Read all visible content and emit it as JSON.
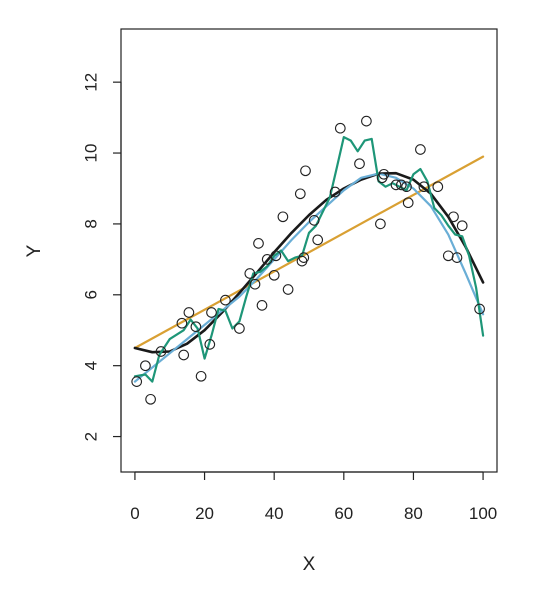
{
  "chart_data": {
    "type": "scatter",
    "title": "",
    "xlabel": "X",
    "ylabel": "Y",
    "xlim": [
      -4,
      104
    ],
    "ylim": [
      1,
      13.5
    ],
    "xticks": [
      0,
      20,
      40,
      60,
      80,
      100
    ],
    "yticks": [
      2,
      4,
      6,
      8,
      10,
      12
    ],
    "xtick_labels": [
      "0",
      "20",
      "40",
      "60",
      "80",
      "100"
    ],
    "ytick_labels": [
      "2",
      "4",
      "6",
      "8",
      "10",
      "12"
    ],
    "grid": false,
    "legend": "none",
    "points": [
      {
        "x": 0.5,
        "y": 3.55
      },
      {
        "x": 3,
        "y": 4.0
      },
      {
        "x": 4.5,
        "y": 3.05
      },
      {
        "x": 7.5,
        "y": 4.4
      },
      {
        "x": 13.5,
        "y": 5.2
      },
      {
        "x": 14,
        "y": 4.3
      },
      {
        "x": 15.5,
        "y": 5.5
      },
      {
        "x": 17.5,
        "y": 5.1
      },
      {
        "x": 19,
        "y": 3.7
      },
      {
        "x": 21.5,
        "y": 4.6
      },
      {
        "x": 22,
        "y": 5.5
      },
      {
        "x": 26,
        "y": 5.85
      },
      {
        "x": 30,
        "y": 5.05
      },
      {
        "x": 33,
        "y": 6.6
      },
      {
        "x": 34.5,
        "y": 6.3
      },
      {
        "x": 35.5,
        "y": 7.45
      },
      {
        "x": 36.5,
        "y": 5.7
      },
      {
        "x": 38,
        "y": 7.0
      },
      {
        "x": 40,
        "y": 6.55
      },
      {
        "x": 40.5,
        "y": 7.1
      },
      {
        "x": 42.5,
        "y": 8.2
      },
      {
        "x": 44,
        "y": 6.15
      },
      {
        "x": 47.5,
        "y": 8.85
      },
      {
        "x": 48,
        "y": 6.95
      },
      {
        "x": 48.5,
        "y": 7.05
      },
      {
        "x": 49,
        "y": 9.5
      },
      {
        "x": 51.5,
        "y": 8.1
      },
      {
        "x": 52.5,
        "y": 7.55
      },
      {
        "x": 57.5,
        "y": 8.9
      },
      {
        "x": 59,
        "y": 10.7
      },
      {
        "x": 64.5,
        "y": 9.7
      },
      {
        "x": 66.5,
        "y": 10.9
      },
      {
        "x": 70.5,
        "y": 8.0
      },
      {
        "x": 71,
        "y": 9.3
      },
      {
        "x": 71.5,
        "y": 9.4
      },
      {
        "x": 75,
        "y": 9.1
      },
      {
        "x": 76.5,
        "y": 9.1
      },
      {
        "x": 78,
        "y": 9.05
      },
      {
        "x": 78.5,
        "y": 8.6
      },
      {
        "x": 82,
        "y": 10.1
      },
      {
        "x": 83,
        "y": 9.05
      },
      {
        "x": 87,
        "y": 9.05
      },
      {
        "x": 90,
        "y": 7.1
      },
      {
        "x": 91.5,
        "y": 8.2
      },
      {
        "x": 92.5,
        "y": 7.05
      },
      {
        "x": 94,
        "y": 7.95
      },
      {
        "x": 99,
        "y": 5.6
      }
    ],
    "series": [
      {
        "kind": "linear-fit",
        "color": "#d9a033",
        "x": [
          0,
          100
        ],
        "y": [
          4.5,
          9.9
        ]
      },
      {
        "kind": "polynomial-fit",
        "color": "#1a1a1a",
        "x": [
          0,
          5,
          10,
          15,
          20,
          25,
          30,
          35,
          40,
          45,
          50,
          55,
          60,
          65,
          70,
          75,
          80,
          85,
          90,
          95,
          100
        ],
        "y": [
          4.5,
          4.38,
          4.4,
          4.62,
          5.0,
          5.5,
          6.05,
          6.62,
          7.2,
          7.75,
          8.25,
          8.68,
          9.0,
          9.25,
          9.42,
          9.43,
          9.25,
          8.85,
          8.2,
          7.35,
          6.35
        ]
      },
      {
        "kind": "smooth-fit",
        "color": "#6aaed6",
        "x": [
          0,
          5,
          10,
          15,
          20,
          25,
          30,
          35,
          40,
          45,
          50,
          55,
          60,
          65,
          70,
          75,
          80,
          85,
          90,
          95,
          100
        ],
        "y": [
          3.55,
          3.95,
          4.35,
          4.75,
          5.15,
          5.55,
          5.95,
          6.45,
          7.0,
          7.55,
          8.05,
          8.5,
          8.95,
          9.3,
          9.42,
          9.3,
          9.0,
          8.5,
          7.7,
          6.6,
          5.45
        ]
      },
      {
        "kind": "flexible-fit",
        "color": "#1e9678",
        "x": [
          0,
          3,
          5,
          7,
          10,
          14,
          16,
          18,
          20,
          22,
          24,
          26,
          28,
          30,
          32,
          34,
          36,
          38,
          40,
          42,
          44,
          46,
          48,
          50,
          52,
          54,
          56,
          58,
          60,
          62,
          64,
          66,
          68,
          70,
          72,
          74,
          76,
          78,
          80,
          82,
          84,
          86,
          88,
          90,
          92,
          94,
          96,
          98,
          100
        ],
        "y": [
          3.7,
          3.75,
          3.55,
          4.3,
          4.75,
          5.0,
          5.3,
          5.05,
          4.2,
          4.85,
          5.6,
          5.55,
          5.05,
          5.25,
          5.95,
          6.6,
          6.65,
          6.8,
          7.1,
          7.25,
          6.95,
          7.05,
          7.1,
          7.75,
          7.95,
          8.35,
          8.75,
          9.6,
          10.45,
          10.35,
          10.05,
          10.35,
          10.4,
          9.2,
          9.05,
          9.15,
          9.05,
          8.95,
          9.4,
          9.55,
          9.2,
          8.45,
          8.25,
          7.95,
          7.7,
          7.65,
          7.1,
          6.2,
          4.85
        ]
      }
    ]
  }
}
